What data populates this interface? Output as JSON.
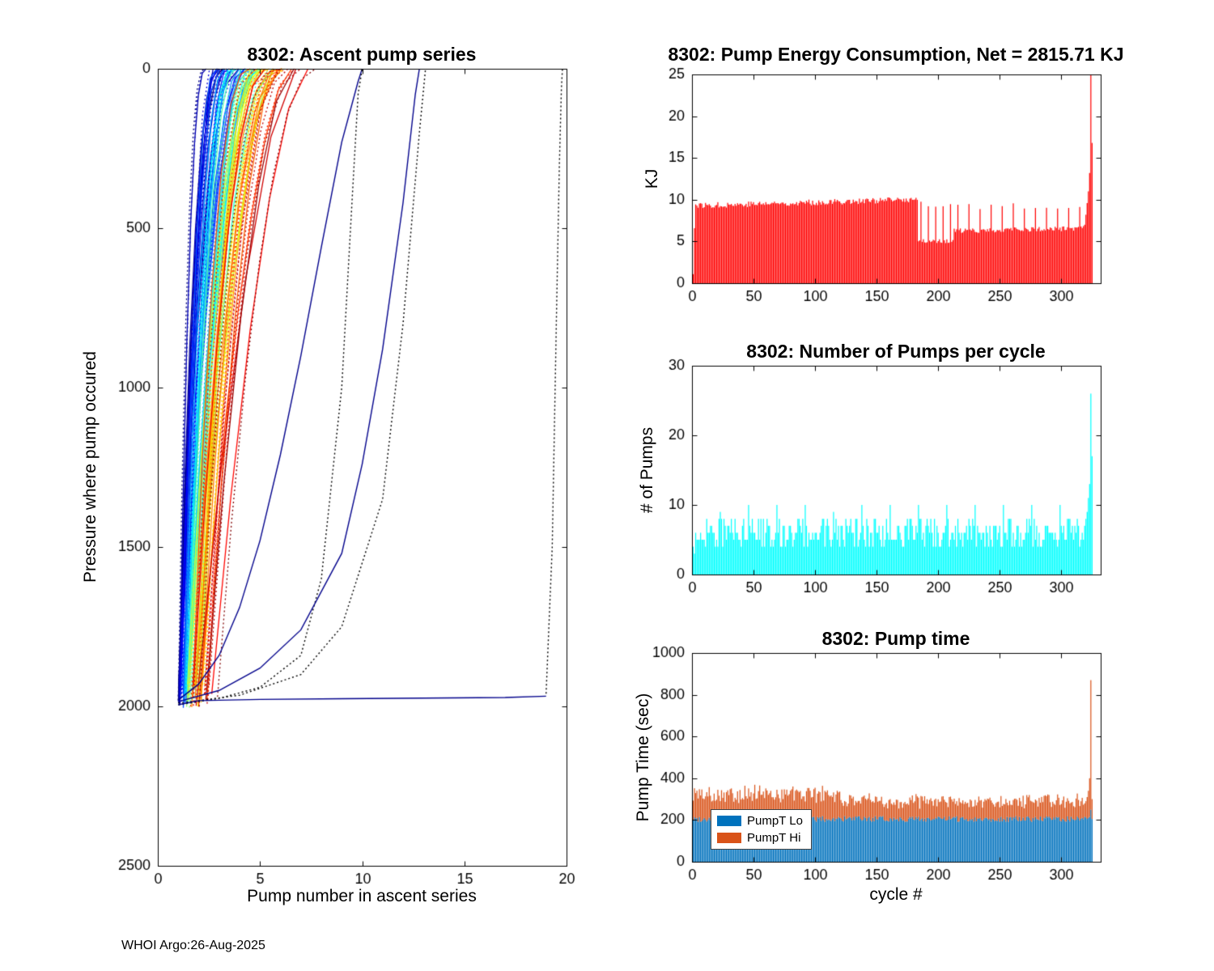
{
  "figure": {
    "background": "#FFFFFF",
    "footer": "WHOI Argo:26-Aug-2025"
  },
  "chart_data": [
    {
      "id": "ascent_pump_series",
      "type": "line",
      "title": "8302: Ascent pump series",
      "xlabel": "Pump number in ascent series",
      "ylabel": "Pressure where pump occured",
      "xlim": [
        0,
        20
      ],
      "ylim": [
        0,
        2500
      ],
      "y_axis_reversed": true,
      "xticks": [
        0,
        5,
        10,
        15,
        20
      ],
      "yticks": [
        0,
        500,
        1000,
        1500,
        2000,
        2500
      ],
      "grid": false,
      "colormap": "jet",
      "cluster": {
        "n_series": 95,
        "start_pressure_range": [
          1930,
          2005
        ],
        "pumps_reach_surface_by_x": [
          2.5,
          8
        ],
        "dotted_fraction": 0.45
      },
      "outlier_series": [
        {
          "name": "slow-ascent-to-10",
          "color": "#00008B",
          "style": "solid",
          "points": [
            [
              1,
              1980
            ],
            [
              2,
              1930
            ],
            [
              3,
              1840
            ],
            [
              4,
              1690
            ],
            [
              5,
              1480
            ],
            [
              6,
              1210
            ],
            [
              7,
              900
            ],
            [
              8,
              560
            ],
            [
              9,
              230
            ],
            [
              9.8,
              40
            ],
            [
              10,
              0
            ]
          ]
        },
        {
          "name": "slow-ascent-dotted-to-10",
          "color": "#000000",
          "style": "dotted",
          "points": [
            [
              1,
              1995
            ],
            [
              3,
              1975
            ],
            [
              5,
              1940
            ],
            [
              7,
              1840
            ],
            [
              8,
              1600
            ],
            [
              9,
              1000
            ],
            [
              9.5,
              420
            ],
            [
              9.8,
              80
            ],
            [
              10,
              0
            ]
          ]
        },
        {
          "name": "slow-ascent-to-13",
          "color": "#00008B",
          "style": "solid",
          "points": [
            [
              1,
              1985
            ],
            [
              3,
              1950
            ],
            [
              5,
              1880
            ],
            [
              7,
              1760
            ],
            [
              9,
              1520
            ],
            [
              10,
              1240
            ],
            [
              11,
              880
            ],
            [
              12,
              420
            ],
            [
              12.6,
              80
            ],
            [
              12.8,
              0
            ]
          ]
        },
        {
          "name": "slow-ascent-dotted-to-13",
          "color": "#000000",
          "style": "dotted",
          "points": [
            [
              1,
              1990
            ],
            [
              4,
              1965
            ],
            [
              7,
              1900
            ],
            [
              9,
              1750
            ],
            [
              11,
              1350
            ],
            [
              12,
              800
            ],
            [
              12.8,
              200
            ],
            [
              13.1,
              0
            ]
          ]
        },
        {
          "name": "bottom-drift-flat-1975",
          "color": "#00008B",
          "style": "solid",
          "points": [
            [
              1,
              1995
            ],
            [
              2,
              1982
            ],
            [
              5,
              1978
            ],
            [
              9,
              1976
            ],
            [
              13,
              1974
            ],
            [
              17,
              1972
            ],
            [
              19,
              1968
            ]
          ]
        },
        {
          "name": "bottom-drift-final-ascent",
          "color": "#000000",
          "style": "dotted",
          "points": [
            [
              19,
              1960
            ],
            [
              19.3,
              1500
            ],
            [
              19.5,
              800
            ],
            [
              19.65,
              300
            ],
            [
              19.75,
              60
            ],
            [
              19.8,
              0
            ]
          ]
        }
      ]
    },
    {
      "id": "pump_energy_consumption",
      "type": "bar",
      "title": "8302: Pump Energy Consumption,  Net = 2815.71 KJ",
      "net_kj": 2815.71,
      "ylabel": "KJ",
      "xlim": [
        0,
        332
      ],
      "ylim": [
        0,
        25
      ],
      "xticks": [
        0,
        50,
        100,
        150,
        200,
        250,
        300
      ],
      "yticks": [
        0,
        5,
        10,
        15,
        20,
        25
      ],
      "bar_color": "#FF0000",
      "n_cycles": 325,
      "segments": [
        {
          "cycles": [
            1,
            1
          ],
          "base": 1.2,
          "jitter": 0.8
        },
        {
          "cycles": [
            2,
            2
          ],
          "base": 7.5,
          "jitter": 1.0
        },
        {
          "cycles": [
            3,
            183
          ],
          "base": 9.3,
          "jitter": 0.35,
          "trend": 0.004
        },
        {
          "cycles": [
            184,
            212
          ],
          "base": 5.05,
          "jitter": 0.25,
          "spike_period": 6,
          "spike_value": 9.4
        },
        {
          "cycles": [
            213,
            318
          ],
          "base": 6.25,
          "jitter": 0.3,
          "trend": 0.003,
          "spike_period": 9,
          "spike_value": 9.2
        }
      ],
      "final_values": [
        7.0,
        8.2,
        9.6,
        11.0,
        13.2,
        25.0,
        16.8
      ]
    },
    {
      "id": "pumps_per_cycle",
      "type": "bar",
      "title": "8302: Number of Pumps per cycle",
      "ylabel": "# of Pumps",
      "xlim": [
        0,
        332
      ],
      "ylim": [
        0,
        30
      ],
      "xticks": [
        0,
        50,
        100,
        150,
        200,
        250,
        300
      ],
      "yticks": [
        0,
        10,
        20,
        30
      ],
      "bar_color": "#00FFFF",
      "n_cycles": 325,
      "segments": [
        {
          "cycles": [
            1,
            2
          ],
          "base": 2.5,
          "jitter": 1.5,
          "integer": true
        },
        {
          "cycles": [
            3,
            318
          ],
          "base": 6.0,
          "jitter": 2.3,
          "integer": true,
          "spike_period": 23,
          "spike_value": 9.5
        }
      ],
      "final_values": [
        7,
        8,
        9,
        11,
        13,
        26,
        17
      ]
    },
    {
      "id": "pump_time",
      "type": "stacked_bar",
      "title": "8302: Pump time",
      "xlabel": "cycle #",
      "ylabel": "Pump Time (sec)",
      "xlim": [
        0,
        332
      ],
      "ylim": [
        0,
        1000
      ],
      "xticks": [
        0,
        50,
        100,
        150,
        200,
        250,
        300
      ],
      "yticks": [
        0,
        200,
        400,
        600,
        800,
        1000
      ],
      "n_cycles": 325,
      "series": [
        {
          "name": "PumpT Lo",
          "color": "#0072BD"
        },
        {
          "name": "PumpT Hi",
          "color": "#D95319"
        }
      ],
      "legend": {
        "location": "southwest",
        "entries": [
          "PumpT Lo",
          "PumpT Hi"
        ]
      },
      "lo_segments": [
        {
          "cycles": [
            1,
            320
          ],
          "base": 205,
          "jitter": 14
        }
      ],
      "hi_segments": [
        {
          "cycles": [
            1,
            120
          ],
          "base": 120,
          "jitter": 35
        },
        {
          "cycles": [
            121,
            320
          ],
          "base": 85,
          "jitter": 28
        }
      ],
      "final_lo": [
        205,
        210,
        215,
        250,
        205
      ],
      "final_hi": [
        105,
        130,
        185,
        620,
        95
      ]
    }
  ]
}
